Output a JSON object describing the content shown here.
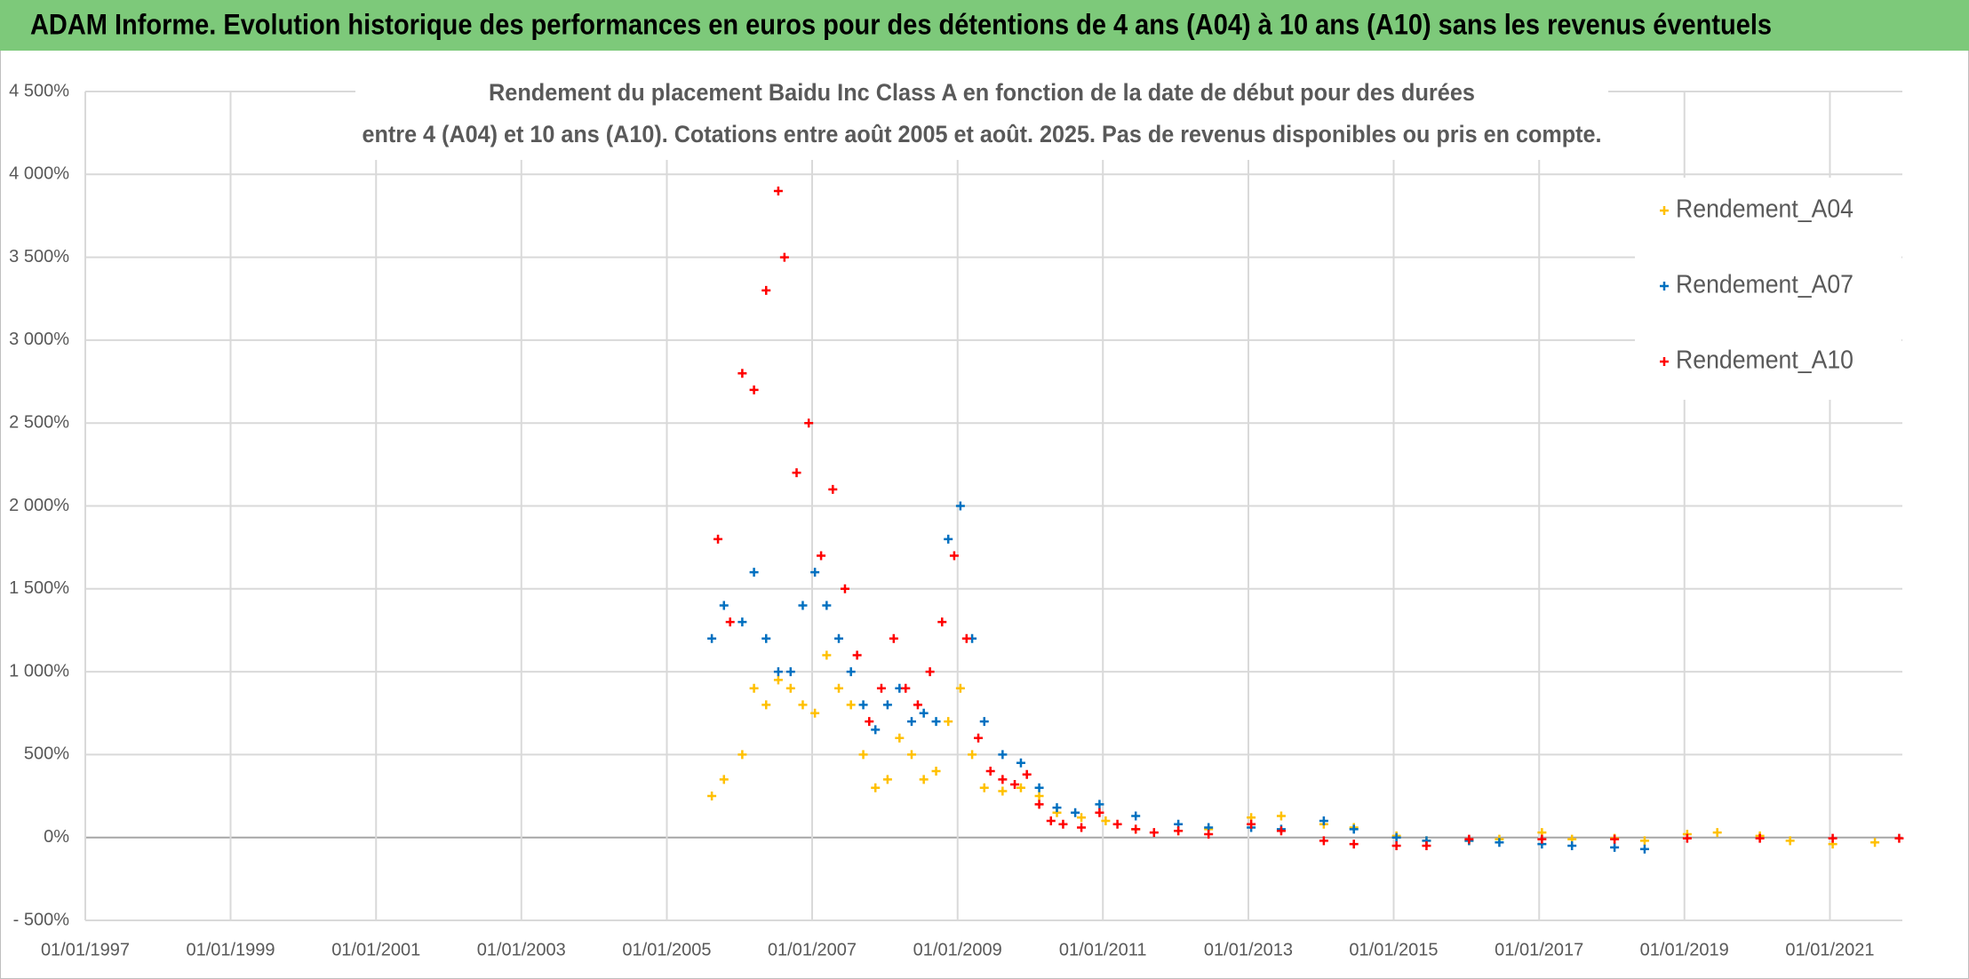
{
  "header": {
    "title": "ADAM Informe. Evolution historique des performances en euros pour des détentions de 4 ans (A04) à 10 ans (A10) sans les revenus éventuels"
  },
  "chart_data": {
    "type": "scatter",
    "title_lines": [
      "Rendement du placement Baidu Inc Class A en fonction de la date de début pour des durées",
      "entre 4 (A04) et 10 ans (A10). Cotations entre août 2005 et août. 2025. Pas de revenus disponibles ou pris en compte."
    ],
    "xlim": [
      "1997-01-01",
      "2021-12-31"
    ],
    "xticks": [
      {
        "value": "1997-01-01",
        "label": "01/01/1997"
      },
      {
        "value": "1999-01-01",
        "label": "01/01/1999"
      },
      {
        "value": "2001-01-01",
        "label": "01/01/2001"
      },
      {
        "value": "2003-01-01",
        "label": "01/01/2003"
      },
      {
        "value": "2005-01-01",
        "label": "01/01/2005"
      },
      {
        "value": "2007-01-01",
        "label": "01/01/2007"
      },
      {
        "value": "2009-01-01",
        "label": "01/01/2009"
      },
      {
        "value": "2011-01-01",
        "label": "01/01/2011"
      },
      {
        "value": "2013-01-01",
        "label": "01/01/2013"
      },
      {
        "value": "2015-01-01",
        "label": "01/01/2015"
      },
      {
        "value": "2017-01-01",
        "label": "01/01/2017"
      },
      {
        "value": "2019-01-01",
        "label": "01/01/2019"
      },
      {
        "value": "2021-01-01",
        "label": "01/01/2021"
      }
    ],
    "ylim": [
      -500,
      4500
    ],
    "yticks": [
      {
        "value": -500,
        "label": "- 500%"
      },
      {
        "value": 0,
        "label": "0%"
      },
      {
        "value": 500,
        "label": "500%"
      },
      {
        "value": 1000,
        "label": "1 000%"
      },
      {
        "value": 1500,
        "label": "1 500%"
      },
      {
        "value": 2000,
        "label": "2 000%"
      },
      {
        "value": 2500,
        "label": "2 500%"
      },
      {
        "value": 3000,
        "label": "3 000%"
      },
      {
        "value": 3500,
        "label": "3 500%"
      },
      {
        "value": 4000,
        "label": "4 000%"
      },
      {
        "value": 4500,
        "label": "4 500%"
      }
    ],
    "grid": true,
    "legend": "upper right",
    "series": [
      {
        "name": "Rendement_A04",
        "color": "#ffc000",
        "x": [
          "2005-08-15",
          "2005-10-15",
          "2006-01-15",
          "2006-03-15",
          "2006-05-15",
          "2006-07-15",
          "2006-09-15",
          "2006-11-15",
          "2007-01-15",
          "2007-03-15",
          "2007-05-15",
          "2007-07-15",
          "2007-09-15",
          "2007-11-15",
          "2008-01-15",
          "2008-03-15",
          "2008-05-15",
          "2008-07-15",
          "2008-09-15",
          "2008-11-15",
          "2009-01-15",
          "2009-03-15",
          "2009-05-15",
          "2009-08-15",
          "2009-11-15",
          "2010-02-15",
          "2010-05-15",
          "2010-09-15",
          "2011-01-15",
          "2011-06-15",
          "2012-01-15",
          "2012-06-15",
          "2013-01-15",
          "2013-06-15",
          "2014-01-15",
          "2014-06-15",
          "2015-01-15",
          "2015-06-15",
          "2016-01-15",
          "2016-06-15",
          "2017-01-15",
          "2017-06-15",
          "2018-01-15",
          "2018-06-15",
          "2019-01-15",
          "2019-06-15",
          "2020-01-15",
          "2020-06-15",
          "2021-01-15",
          "2021-08-15"
        ],
        "values": [
          250,
          350,
          500,
          900,
          800,
          950,
          900,
          800,
          750,
          1100,
          900,
          800,
          500,
          300,
          350,
          600,
          500,
          350,
          400,
          700,
          900,
          500,
          300,
          280,
          300,
          250,
          150,
          120,
          100,
          50,
          40,
          50,
          120,
          130,
          80,
          60,
          10,
          -20,
          -20,
          -10,
          30,
          -10,
          -5,
          -20,
          20,
          30,
          10,
          -20,
          -40,
          -30
        ]
      },
      {
        "name": "Rendement_A07",
        "color": "#0070c0",
        "x": [
          "2005-08-15",
          "2005-10-15",
          "2006-01-15",
          "2006-03-15",
          "2006-05-15",
          "2006-07-15",
          "2006-09-15",
          "2006-11-15",
          "2007-01-15",
          "2007-03-15",
          "2007-05-15",
          "2007-07-15",
          "2007-09-15",
          "2007-11-15",
          "2008-01-15",
          "2008-03-15",
          "2008-05-15",
          "2008-07-15",
          "2008-09-15",
          "2008-11-15",
          "2009-01-15",
          "2009-03-15",
          "2009-05-15",
          "2009-08-15",
          "2009-11-15",
          "2010-02-15",
          "2010-05-15",
          "2010-08-15",
          "2010-12-15",
          "2011-06-15",
          "2012-01-15",
          "2012-06-15",
          "2013-01-15",
          "2013-06-15",
          "2014-01-15",
          "2014-06-15",
          "2015-01-15",
          "2015-06-15",
          "2016-01-15",
          "2016-06-15",
          "2017-01-15",
          "2017-06-15",
          "2018-01-15",
          "2018-06-15"
        ],
        "values": [
          1200,
          1400,
          1300,
          1600,
          1200,
          1000,
          1000,
          1400,
          1600,
          1400,
          1200,
          1000,
          800,
          650,
          800,
          900,
          700,
          750,
          700,
          1800,
          2000,
          1200,
          700,
          500,
          450,
          300,
          180,
          150,
          200,
          130,
          80,
          60,
          60,
          50,
          100,
          50,
          0,
          -20,
          -20,
          -30,
          -40,
          -50,
          -60,
          -70
        ]
      },
      {
        "name": "Rendement_A10",
        "color": "#ff0000",
        "x": [
          "2005-09-15",
          "2005-11-15",
          "2006-01-15",
          "2006-03-15",
          "2006-05-15",
          "2006-07-15",
          "2006-08-15",
          "2006-10-15",
          "2006-12-15",
          "2007-02-15",
          "2007-04-15",
          "2007-06-15",
          "2007-08-15",
          "2007-10-15",
          "2007-12-15",
          "2008-02-15",
          "2008-04-15",
          "2008-06-15",
          "2008-08-15",
          "2008-10-15",
          "2008-12-15",
          "2009-02-15",
          "2009-04-15",
          "2009-06-15",
          "2009-08-15",
          "2009-10-15",
          "2009-12-15",
          "2010-02-15",
          "2010-04-15",
          "2010-06-15",
          "2010-09-15",
          "2010-12-15",
          "2011-03-15",
          "2011-06-15",
          "2011-09-15",
          "2012-01-15",
          "2012-06-15",
          "2013-01-15",
          "2013-06-15",
          "2014-01-15",
          "2014-06-15",
          "2015-01-15",
          "2015-06-15",
          "2016-01-15",
          "2017-01-15",
          "2018-01-15",
          "2019-01-15",
          "2020-01-15",
          "2021-01-15",
          "2021-12-15"
        ],
        "values": [
          1800,
          1300,
          2800,
          2700,
          3300,
          3900,
          3500,
          2200,
          2500,
          1700,
          2100,
          1500,
          1100,
          700,
          900,
          1200,
          900,
          800,
          1000,
          1300,
          1700,
          1200,
          600,
          400,
          350,
          320,
          380,
          200,
          100,
          80,
          60,
          150,
          80,
          50,
          30,
          40,
          20,
          80,
          40,
          -20,
          -40,
          -50,
          -50,
          -10,
          -10,
          -10,
          -5,
          -5,
          -5,
          -5
        ]
      }
    ]
  }
}
